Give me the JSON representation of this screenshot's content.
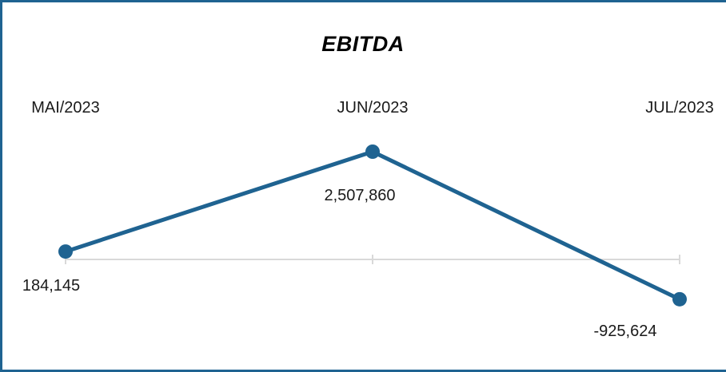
{
  "chart_data": {
    "type": "line",
    "title": "EBITDA",
    "categories": [
      "MAI/2023",
      "JUN/2023",
      "JUL/2023"
    ],
    "values": [
      184145,
      2507860,
      -925624
    ],
    "data_labels": [
      "184,145",
      "2,507,860",
      "-925,624"
    ],
    "xlabel": "",
    "ylabel": "",
    "ylim": [
      -2000000,
      3500000
    ],
    "grid": false,
    "legend": "none",
    "line_color": "#1f6391",
    "axis_color": "#d9d9d9"
  }
}
